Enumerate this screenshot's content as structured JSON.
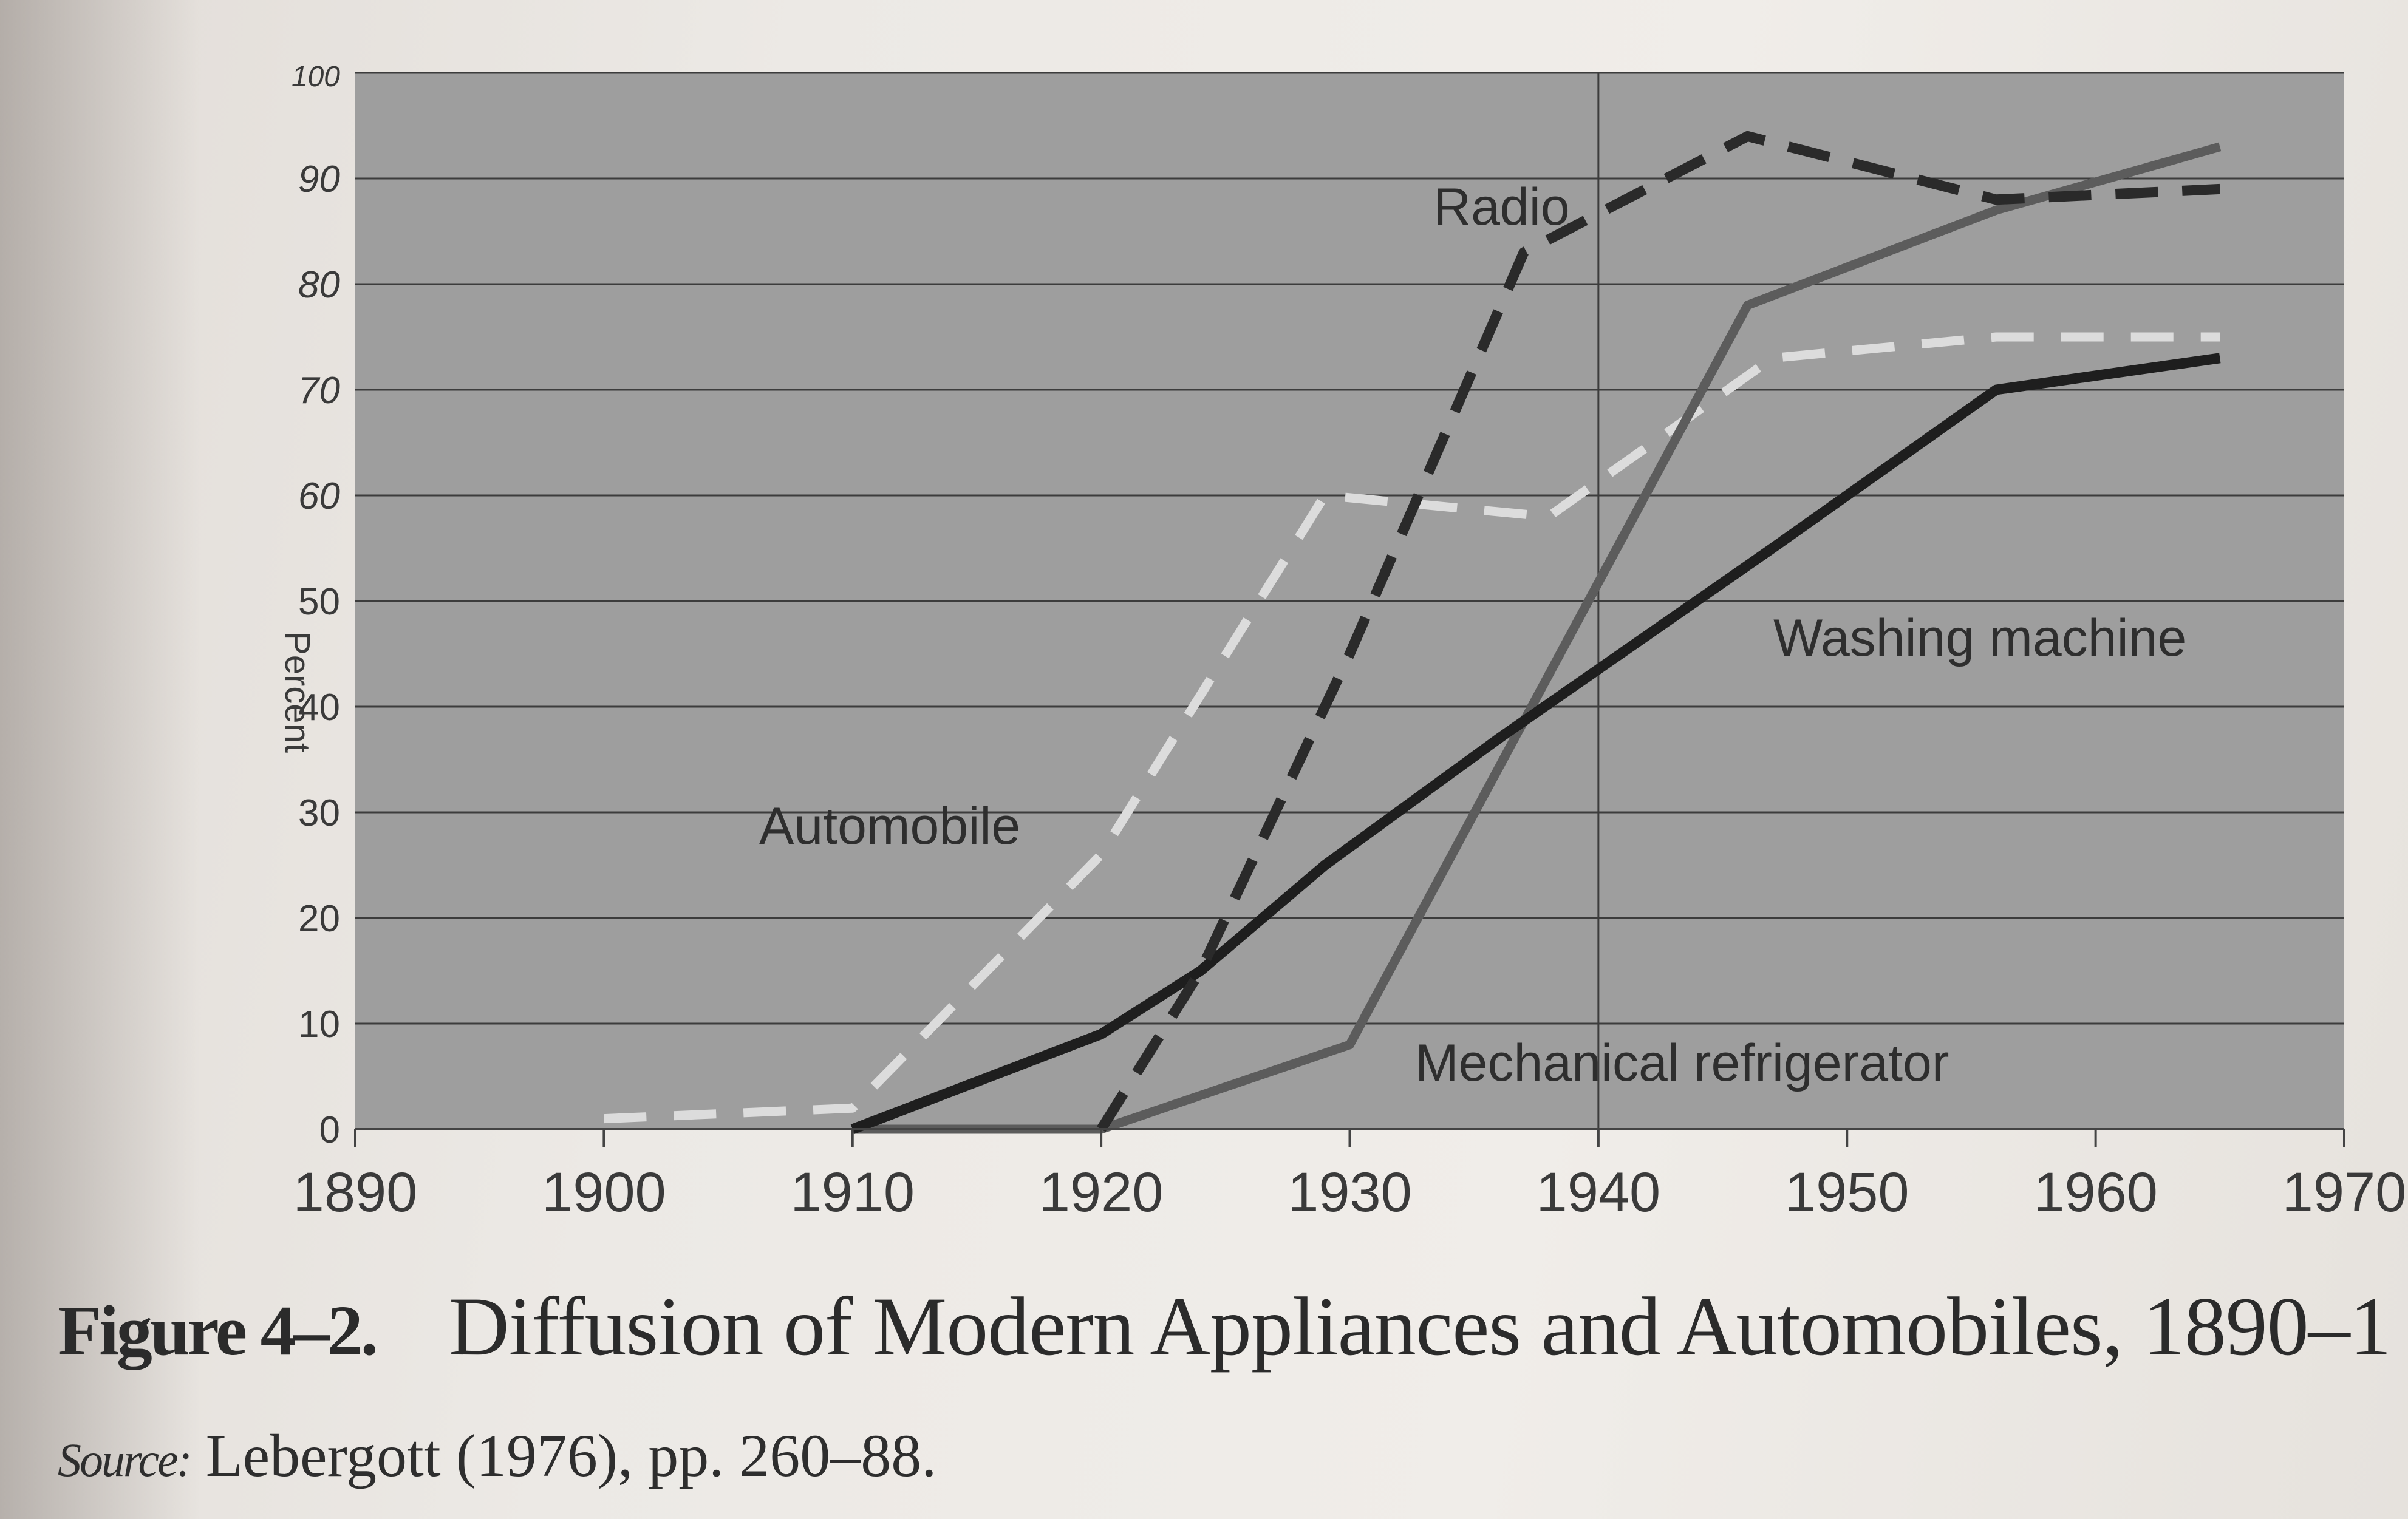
{
  "chart_data": {
    "type": "line",
    "ylabel": "Percent",
    "xlabel": "",
    "xlim": [
      1890,
      1970
    ],
    "ylim": [
      0,
      100
    ],
    "x_ticks": [
      "1890",
      "1900",
      "1910",
      "1920",
      "1930",
      "1940",
      "1950",
      "1960",
      "1970"
    ],
    "y_ticks": [
      "0",
      "10",
      "20",
      "30",
      "40",
      "50",
      "60",
      "70",
      "80",
      "90",
      "100"
    ],
    "grid": true,
    "colors": {
      "plot_background": "#9e9e9e",
      "automobile": "#dcdcdc",
      "radio": "#2a2a2a",
      "washing_machine": "#1e1e1e",
      "mechanical_refrigerator": "#5c5c5c"
    },
    "series": [
      {
        "name": "Automobile",
        "style": "dashed-light",
        "points": [
          [
            1900,
            1
          ],
          [
            1910,
            2
          ],
          [
            1920,
            26
          ],
          [
            1929,
            60
          ],
          [
            1938,
            58
          ],
          [
            1947,
            73
          ],
          [
            1956,
            75
          ],
          [
            1965,
            75
          ]
        ]
      },
      {
        "name": "Radio",
        "style": "dashed-dark",
        "points": [
          [
            1920,
            0
          ],
          [
            1924,
            15
          ],
          [
            1930,
            45
          ],
          [
            1937,
            83
          ],
          [
            1946,
            94
          ],
          [
            1956,
            88
          ],
          [
            1965,
            89
          ]
        ]
      },
      {
        "name": "Washing machine",
        "style": "solid-dark",
        "points": [
          [
            1910,
            0
          ],
          [
            1920,
            9
          ],
          [
            1924,
            15
          ],
          [
            1929,
            25
          ],
          [
            1936,
            37
          ],
          [
            1947,
            55
          ],
          [
            1956,
            70
          ],
          [
            1965,
            73
          ]
        ]
      },
      {
        "name": "Mechanical refrigerator",
        "style": "solid-gray",
        "points": [
          [
            1910,
            0
          ],
          [
            1920,
            0
          ],
          [
            1930,
            8
          ],
          [
            1938,
            43
          ],
          [
            1946,
            78
          ],
          [
            1956,
            87
          ],
          [
            1965,
            93
          ]
        ]
      }
    ]
  },
  "caption": {
    "figure_number": "Figure 4–2.",
    "title": "Diffusion of Modern Appliances and Automobiles, 1890–1"
  },
  "source": {
    "label": "Source:",
    "text": "Lebergott (1976), pp. 260–88."
  }
}
